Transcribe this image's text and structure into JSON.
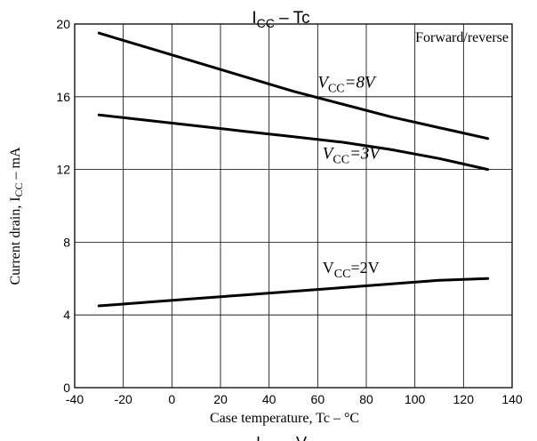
{
  "chart_data": {
    "type": "line",
    "title": "I_CC – Tc",
    "title_main": "I",
    "title_sub": "CC",
    "title_rest": " – Tc",
    "xlabel": "Case temperature, Tc – °C",
    "ylabel": "Current drain, I_CC – mA",
    "ylabel_main": "Current drain, I",
    "ylabel_sub": "CC",
    "ylabel_rest": " – mA",
    "xlim": [
      -40,
      140
    ],
    "ylim": [
      0,
      20
    ],
    "x_ticks": [
      -40,
      -20,
      0,
      20,
      40,
      60,
      80,
      100,
      120,
      140
    ],
    "y_ticks": [
      0,
      4,
      8,
      12,
      16,
      20
    ],
    "grid": true,
    "legend_note": "Forward/reverse",
    "series": [
      {
        "name": "VCC=8V",
        "label_main": "V",
        "label_sub": "CC",
        "label_rest": "=8V",
        "x": [
          -30,
          -10,
          10,
          30,
          50,
          70,
          90,
          110,
          130
        ],
        "y": [
          19.5,
          18.7,
          17.9,
          17.1,
          16.3,
          15.6,
          14.9,
          14.3,
          13.7
        ]
      },
      {
        "name": "VCC=3V",
        "label_main": "V",
        "label_sub": "CC",
        "label_rest": "=3V",
        "x": [
          -30,
          -10,
          10,
          30,
          50,
          70,
          90,
          110,
          130
        ],
        "y": [
          15.0,
          14.7,
          14.4,
          14.1,
          13.8,
          13.5,
          13.1,
          12.6,
          12.0
        ]
      },
      {
        "name": "VCC=2V",
        "label_main": "V",
        "label_sub": "CC",
        "label_rest": "=2V",
        "x": [
          -30,
          -10,
          10,
          30,
          50,
          70,
          90,
          110,
          130
        ],
        "y": [
          4.5,
          4.7,
          4.9,
          5.1,
          5.3,
          5.5,
          5.7,
          5.9,
          6.0
        ]
      }
    ]
  },
  "footer_cut": {
    "main1": "I",
    "main2": "V"
  }
}
